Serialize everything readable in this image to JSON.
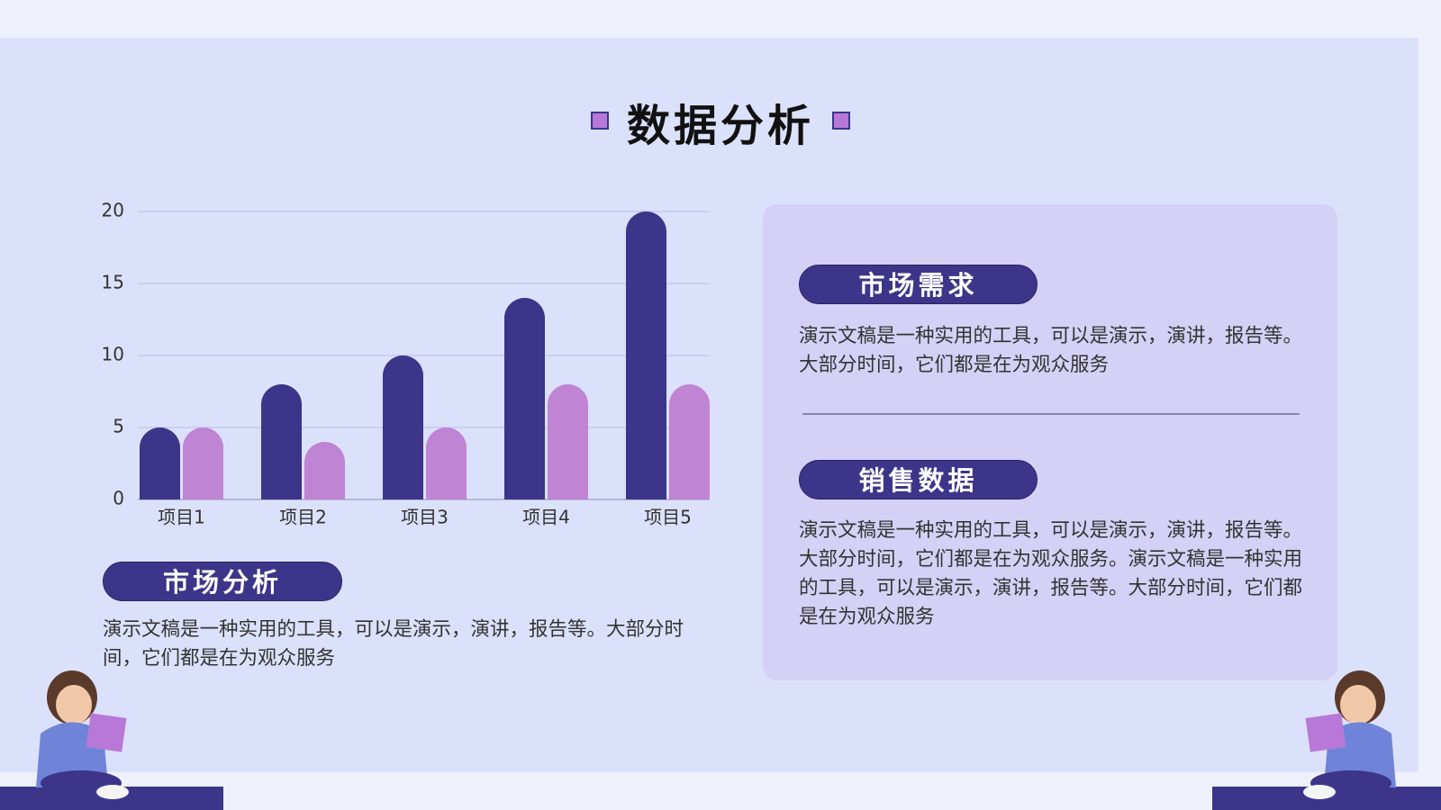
{
  "title": "数据分析",
  "chart_data": {
    "type": "bar",
    "categories": [
      "项目1",
      "项目2",
      "项目3",
      "项目4",
      "项目5"
    ],
    "series": [
      {
        "color": "#3d3589",
        "values": [
          5,
          8,
          10,
          14,
          20
        ]
      },
      {
        "color": "#c084d4",
        "values": [
          5,
          4,
          5,
          8,
          8
        ]
      }
    ],
    "ylim": [
      0,
      20
    ],
    "yticks": [
      0,
      5,
      10,
      15,
      20
    ],
    "grid": true
  },
  "left_section": {
    "heading": "市场分析",
    "text": "演示文稿是一种实用的工具，可以是演示，演讲，报告等。大部分时间，它们都是在为观众服务"
  },
  "right_panel": {
    "sections": [
      {
        "heading": "市场需求",
        "text": "演示文稿是一种实用的工具，可以是演示，演讲，报告等。大部分时间，它们都是在为观众服务"
      },
      {
        "heading": "销售数据",
        "text": "演示文稿是一种实用的工具，可以是演示，演讲，报告等。大部分时间，它们都是在为观众服务。演示文稿是一种实用的工具，可以是演示，演讲，报告等。大部分时间，它们都是在为观众服务"
      }
    ]
  }
}
